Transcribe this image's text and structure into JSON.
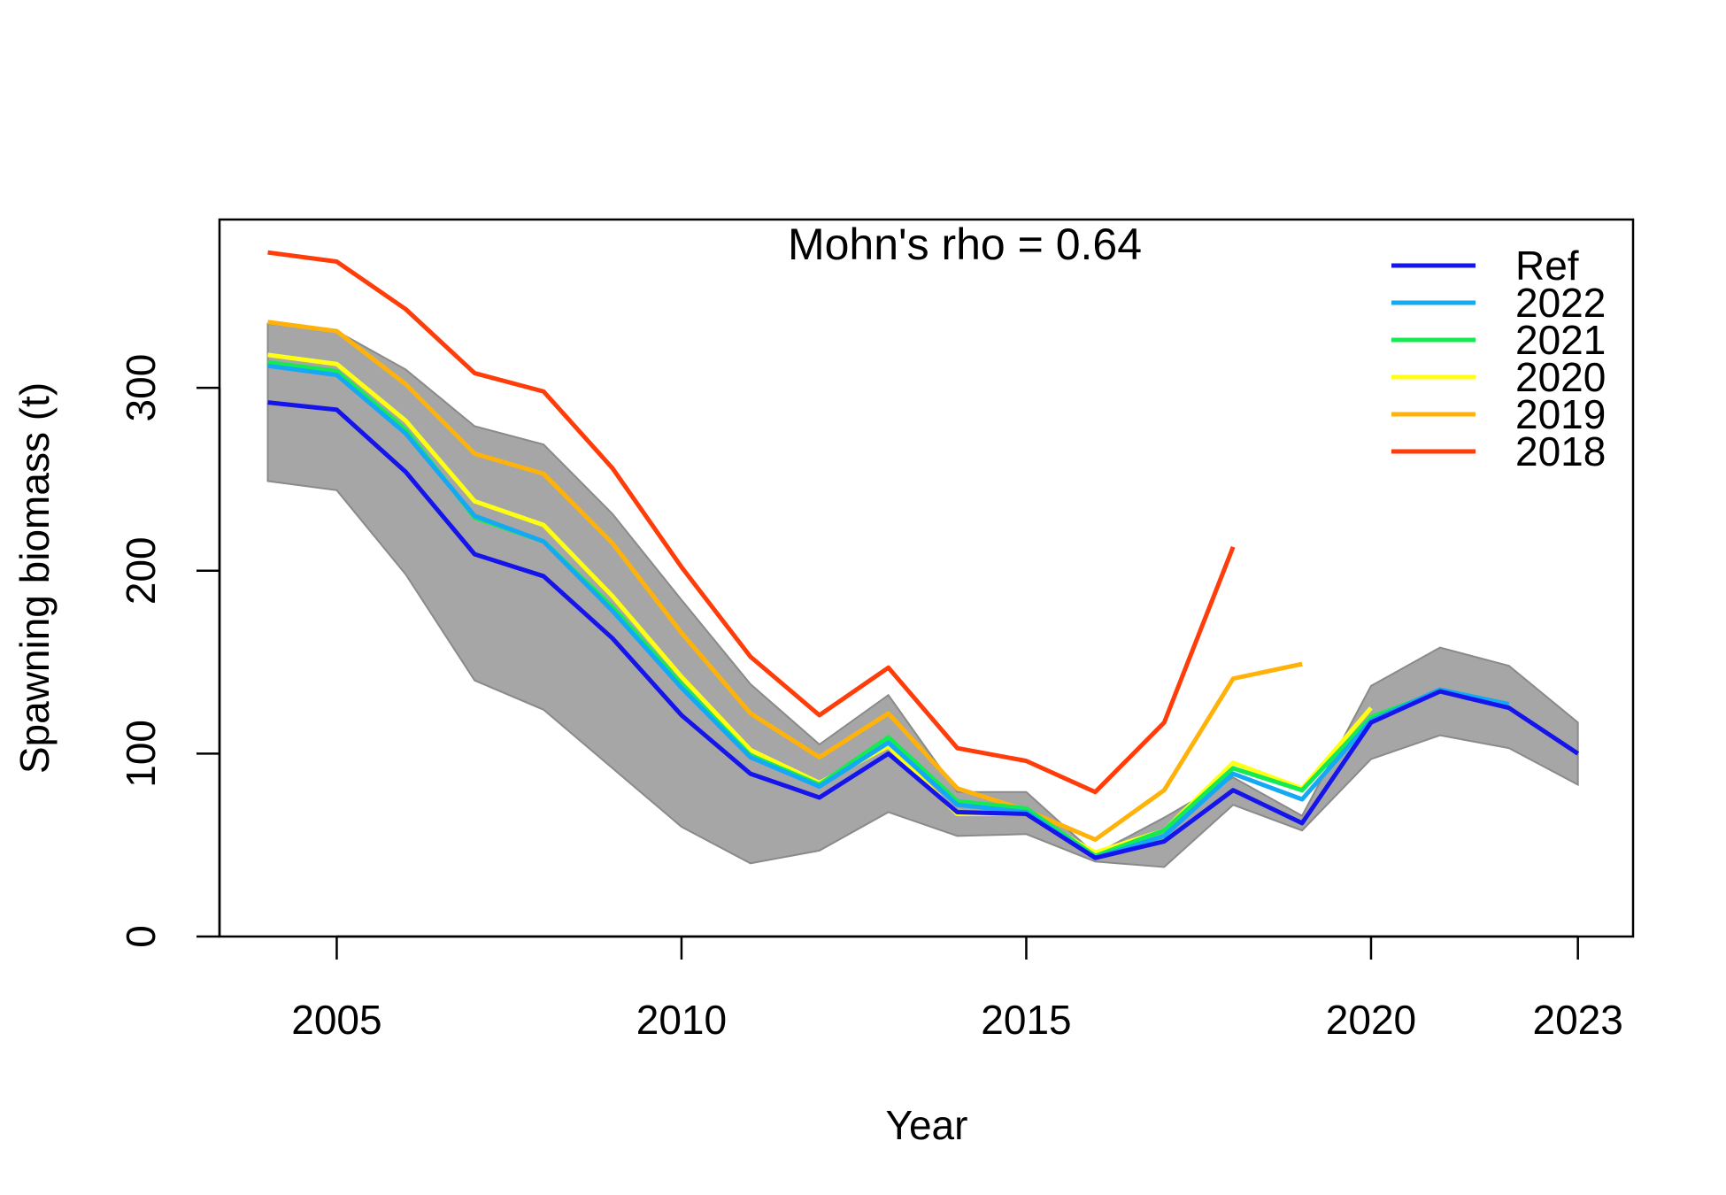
{
  "chart_data": {
    "type": "line",
    "title": "Mohn's rho = 0.64",
    "xlabel": "Year",
    "ylabel": "Spawning biomass (t)",
    "xlim": [
      2003.3,
      2023.8
    ],
    "ylim": [
      0,
      392
    ],
    "x_ticks": [
      2005,
      2010,
      2015,
      2020,
      2023
    ],
    "y_ticks": [
      0,
      100,
      200,
      300
    ],
    "grid": false,
    "legend_position": "top-right",
    "colors": {
      "ci_fill": "#a6a6a6",
      "ci_edge": "#8a8a8a",
      "axis": "#000000"
    },
    "confidence_band": {
      "x": [
        2004,
        2005,
        2006,
        2007,
        2008,
        2009,
        2010,
        2011,
        2012,
        2013,
        2014,
        2015,
        2016,
        2017,
        2018,
        2019,
        2020,
        2021,
        2022,
        2023
      ],
      "upper": [
        335,
        331,
        310,
        279,
        269,
        231,
        184,
        138,
        105,
        132,
        79,
        79,
        45,
        65,
        87,
        66,
        137,
        158,
        148,
        117
      ],
      "lower": [
        249,
        244,
        198,
        140,
        124,
        92,
        60,
        40,
        47,
        68,
        55,
        56,
        41,
        38,
        72,
        58,
        97,
        110,
        103,
        83
      ]
    },
    "series": [
      {
        "name": "2018",
        "color": "#ff3d0a",
        "x": [
          2004,
          2005,
          2006,
          2007,
          2008,
          2009,
          2010,
          2011,
          2012,
          2013,
          2014,
          2015,
          2016,
          2017,
          2018
        ],
        "values": [
          374,
          369,
          343,
          308,
          298,
          256,
          202,
          153,
          121,
          147,
          103,
          96,
          79,
          117,
          213
        ]
      },
      {
        "name": "2019",
        "color": "#ffb30a",
        "x": [
          2004,
          2005,
          2006,
          2007,
          2008,
          2009,
          2010,
          2011,
          2012,
          2013,
          2014,
          2015,
          2016,
          2017,
          2018,
          2019
        ],
        "values": [
          336,
          331,
          302,
          264,
          253,
          215,
          166,
          122,
          98,
          122,
          81,
          69,
          53,
          80,
          141,
          149
        ]
      },
      {
        "name": "2020",
        "color": "#ffff14",
        "x": [
          2004,
          2005,
          2006,
          2007,
          2008,
          2009,
          2010,
          2011,
          2012,
          2013,
          2014,
          2015,
          2016,
          2017,
          2018,
          2019,
          2020
        ],
        "values": [
          318,
          313,
          282,
          238,
          225,
          186,
          142,
          102,
          84,
          104,
          67,
          67,
          46,
          58,
          95,
          81,
          125
        ]
      },
      {
        "name": "2021",
        "color": "#14eb52",
        "x": [
          2004,
          2005,
          2006,
          2007,
          2008,
          2009,
          2010,
          2011,
          2012,
          2013,
          2014,
          2015,
          2016,
          2017,
          2018,
          2019,
          2020,
          2021
        ],
        "values": [
          314,
          309,
          277,
          229,
          216,
          180,
          138,
          99,
          83,
          109,
          74,
          70,
          44,
          58,
          92,
          80,
          120,
          134
        ]
      },
      {
        "name": "2022",
        "color": "#14a8f5",
        "x": [
          2004,
          2005,
          2006,
          2007,
          2008,
          2009,
          2010,
          2011,
          2012,
          2013,
          2014,
          2015,
          2016,
          2017,
          2018,
          2019,
          2020,
          2021,
          2022
        ],
        "values": [
          312,
          307,
          275,
          230,
          216,
          178,
          136,
          98,
          82,
          106,
          72,
          68,
          43,
          55,
          89,
          75,
          118,
          135,
          127
        ]
      },
      {
        "name": "Ref",
        "color": "#1414eb",
        "x": [
          2004,
          2005,
          2006,
          2007,
          2008,
          2009,
          2010,
          2011,
          2012,
          2013,
          2014,
          2015,
          2016,
          2017,
          2018,
          2019,
          2020,
          2021,
          2022,
          2023
        ],
        "values": [
          292,
          288,
          254,
          209,
          197,
          163,
          121,
          89,
          76,
          100,
          68,
          67,
          43,
          52,
          80,
          62,
          117,
          134,
          125,
          100
        ]
      }
    ],
    "legend_order": [
      "Ref",
      "2022",
      "2021",
      "2020",
      "2019",
      "2018"
    ]
  }
}
